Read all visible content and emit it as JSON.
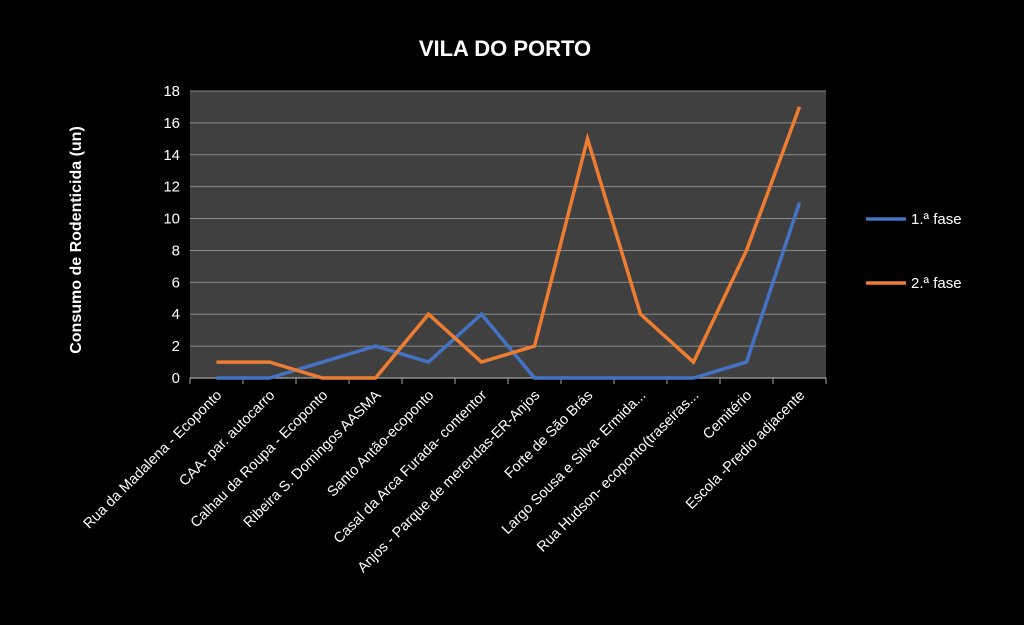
{
  "chart_data": {
    "type": "line",
    "title": "VILA DO PORTO",
    "xlabel": "",
    "ylabel": "Consumo de Rodenticida  (un)",
    "ylim": [
      0,
      18
    ],
    "yticks": [
      0,
      2,
      4,
      6,
      8,
      10,
      12,
      14,
      16,
      18
    ],
    "grid": true,
    "legend_position": "right",
    "categories": [
      "Rua da Madalena - Ecoponto",
      "CAA- par. autocarro",
      "Calhau da Roupa - Ecoponto",
      "Ribeira S. Domingos AASMA",
      "Santo Antão-ecoponto",
      "Casal da Arca Furada- contentor",
      "Anjos - Parque de merendas-ER-Anjos",
      "Forte de São Brás",
      "Largo Sousa e Silva- Ermida...",
      "Rua Hudson- ecoponto(traseiras...",
      "Cemitério",
      "Escola -Predio adjacente"
    ],
    "series": [
      {
        "name": "1.ª fase",
        "color": "#4472C4",
        "values": [
          0,
          0,
          1,
          2,
          1,
          4,
          0,
          0,
          0,
          0,
          1,
          11
        ]
      },
      {
        "name": "2.ª fase",
        "color": "#ED7D31",
        "values": [
          1,
          1,
          0,
          0,
          4,
          1,
          2,
          15,
          4,
          1,
          8,
          17
        ]
      }
    ],
    "colors": {
      "plot_background": "#404040",
      "gridline": "#8c8c8c",
      "page_background": "#000000"
    }
  }
}
